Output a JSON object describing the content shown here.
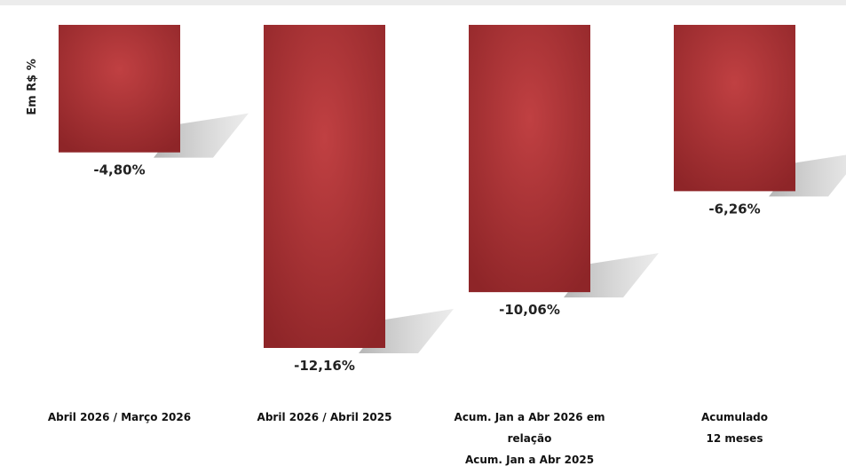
{
  "chart_data": {
    "type": "bar",
    "ylabel": "Em R$ %",
    "categories": [
      [
        "Abril 2026 / Março 2026"
      ],
      [
        "Abril 2026 / Abril 2025"
      ],
      [
        "Acum. Jan a Abr 2026 em",
        "relação",
        "Acum. Jan a Abr 2025"
      ],
      [
        "Acumulado",
        "12 meses"
      ]
    ],
    "values": [
      -4.8,
      -12.16,
      -10.06,
      -6.26
    ],
    "value_labels": [
      "-4,80%",
      "-12,16%",
      "-10,06%",
      "-6,26%"
    ],
    "ylim": [
      -12.16,
      0
    ],
    "grid": false,
    "legend": "none",
    "colors": {
      "bar_dark": "#8e2528",
      "bar_light": "#c04042",
      "shadow": "#b8b8b8",
      "text": "#222222"
    }
  }
}
